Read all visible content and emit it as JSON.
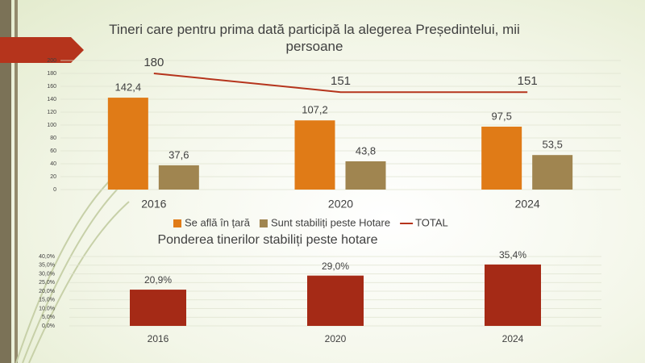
{
  "chart_data": [
    {
      "type": "bar-line",
      "title": "Tineri care pentru prima dată participă la alegerea Președintelui, mii persoane",
      "categories": [
        "2016",
        "2020",
        "2024"
      ],
      "series": [
        {
          "name": "Se află în țară",
          "color": "#e07b17",
          "type": "bar",
          "values": [
            142.4,
            107.2,
            97.5
          ],
          "value_labels": [
            "142,4",
            "107,2",
            "97,5"
          ]
        },
        {
          "name": "Sunt stabiliți peste Hotare",
          "color": "#a08550",
          "type": "bar",
          "values": [
            37.6,
            43.8,
            53.5
          ],
          "value_labels": [
            "37,6",
            "43,8",
            "53,5"
          ]
        },
        {
          "name": "TOTAL",
          "color": "#b5341c",
          "type": "line",
          "values": [
            180,
            151,
            151
          ]
        }
      ],
      "ylim": [
        0,
        200
      ],
      "yticks": [
        0,
        20,
        40,
        60,
        80,
        100,
        120,
        140,
        160,
        180,
        200
      ],
      "grid": true,
      "legend": "bottom"
    },
    {
      "type": "bar",
      "title": "Ponderea tinerilor stabiliți peste hotare",
      "categories": [
        "2016",
        "2020",
        "2024"
      ],
      "values": [
        20.9,
        29.0,
        35.4
      ],
      "value_labels": [
        "20,9%",
        "29,0%",
        "35,4%"
      ],
      "color": "#a52a16",
      "ylim": [
        0,
        40
      ],
      "yticks": [
        {
          "value": 0,
          "label": "0,0%"
        },
        {
          "value": 5,
          "label": "5,0%"
        },
        {
          "value": 10,
          "label": "10,0%"
        },
        {
          "value": 15,
          "label": "15,0%"
        },
        {
          "value": 20,
          "label": "20,0%"
        },
        {
          "value": 25,
          "label": "25,0%"
        },
        {
          "value": 30,
          "label": "30,0%"
        },
        {
          "value": 35,
          "label": "35,0%"
        },
        {
          "value": 40,
          "label": "40,0%"
        }
      ],
      "grid": true
    }
  ]
}
